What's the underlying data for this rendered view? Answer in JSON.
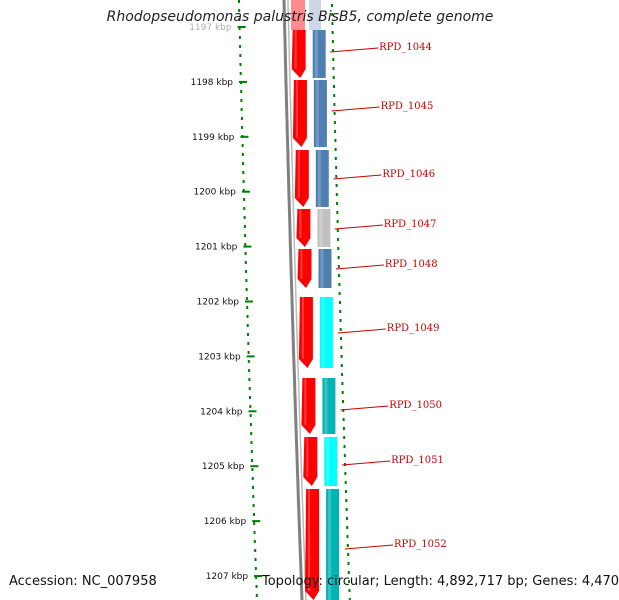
{
  "title": "Rhodopseudomonas palustris BisB5, complete genome",
  "footer": {
    "accession": "Accession: NC_007958",
    "summary": "Topology: circular; Length: 4,892,717 bp; Genes: 4,470"
  },
  "colors": {
    "backbone": "#808080",
    "cds_strand": "#ff0000",
    "cog_blue": "#4f7eb0",
    "cog_gray": "#c0c0c0",
    "cog_cyan": "#00ffff",
    "cog_teal": "#00b4b4",
    "tick": "#008000",
    "gene_label": "#cc0000"
  },
  "kbp_ticks": [
    {
      "label": "1197 kbp",
      "faded": true
    },
    {
      "label": "1198 kbp"
    },
    {
      "label": "1199 kbp"
    },
    {
      "label": "1200 kbp"
    },
    {
      "label": "1201 kbp"
    },
    {
      "label": "1202 kbp"
    },
    {
      "label": "1203 kbp"
    },
    {
      "label": "1204 kbp"
    },
    {
      "label": "1205 kbp"
    },
    {
      "label": "1206 kbp"
    },
    {
      "label": "1207 kbp"
    }
  ],
  "genes": [
    {
      "name": "RPD_1044",
      "cog": "cog_blue"
    },
    {
      "name": "RPD_1045",
      "cog": "cog_blue"
    },
    {
      "name": "RPD_1046",
      "cog": "cog_blue"
    },
    {
      "name": "RPD_1047",
      "cog": "cog_gray"
    },
    {
      "name": "RPD_1048",
      "cog": "cog_blue"
    },
    {
      "name": "RPD_1049",
      "cog": "cog_cyan"
    },
    {
      "name": "RPD_1050",
      "cog": "cog_teal"
    },
    {
      "name": "RPD_1051",
      "cog": "cog_cyan"
    },
    {
      "name": "RPD_1052",
      "cog": "cog_teal"
    }
  ]
}
